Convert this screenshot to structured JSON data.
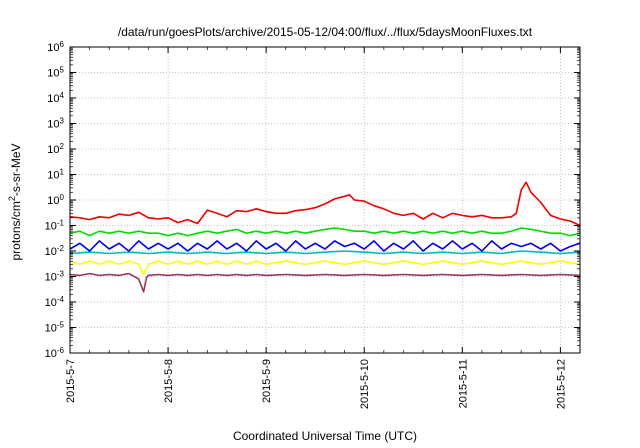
{
  "chart_data": {
    "type": "line",
    "title": "/data/run/goesPlots/archive/2015-05-12/04:00/flux/../flux/5daysMoonFluxes.txt",
    "xlabel": "Coordinated Universal Time (UTC)",
    "ylabel": {
      "before": "protons/cm",
      "sup": "2",
      "after": "-s-sr-MeV"
    },
    "yscale": "log",
    "ylim": [
      1e-06,
      1000000.0
    ],
    "xlim": [
      0,
      5.2
    ],
    "grid": true,
    "x_ticks": [
      {
        "x": 0,
        "label": "2015-5-7"
      },
      {
        "x": 1,
        "label": "2015-5-8"
      },
      {
        "x": 2,
        "label": "2015-5-9"
      },
      {
        "x": 3,
        "label": "2015-5-10"
      },
      {
        "x": 4,
        "label": "2015-5-11"
      },
      {
        "x": 5,
        "label": "2015-5-12"
      }
    ],
    "y_ticks": [
      {
        "exp": -6,
        "base": "10",
        "sup": "-6"
      },
      {
        "exp": -5,
        "base": "10",
        "sup": "-5"
      },
      {
        "exp": -4,
        "base": "10",
        "sup": "-4"
      },
      {
        "exp": -3,
        "base": "10",
        "sup": "-3"
      },
      {
        "exp": -2,
        "base": "10",
        "sup": "-2"
      },
      {
        "exp": -1,
        "base": "10",
        "sup": "-1"
      },
      {
        "exp": 0,
        "base": "10",
        "sup": "0"
      },
      {
        "exp": 1,
        "base": "10",
        "sup": "1"
      },
      {
        "exp": 2,
        "base": "10",
        "sup": "2"
      },
      {
        "exp": 3,
        "base": "10",
        "sup": "3"
      },
      {
        "exp": 4,
        "base": "10",
        "sup": "4"
      },
      {
        "exp": 5,
        "base": "10",
        "sup": "5"
      },
      {
        "exp": 6,
        "base": "10",
        "sup": "6"
      }
    ],
    "series": [
      {
        "color": "#ee0000",
        "points": [
          [
            0,
            0.22
          ],
          [
            0.1,
            0.2
          ],
          [
            0.2,
            0.17
          ],
          [
            0.3,
            0.22
          ],
          [
            0.4,
            0.2
          ],
          [
            0.5,
            0.28
          ],
          [
            0.6,
            0.25
          ],
          [
            0.7,
            0.33
          ],
          [
            0.8,
            0.2
          ],
          [
            0.9,
            0.18
          ],
          [
            1.0,
            0.2
          ],
          [
            1.1,
            0.13
          ],
          [
            1.2,
            0.17
          ],
          [
            1.3,
            0.12
          ],
          [
            1.4,
            0.4
          ],
          [
            1.5,
            0.3
          ],
          [
            1.6,
            0.22
          ],
          [
            1.7,
            0.38
          ],
          [
            1.8,
            0.35
          ],
          [
            1.9,
            0.45
          ],
          [
            2.0,
            0.35
          ],
          [
            2.1,
            0.3
          ],
          [
            2.2,
            0.3
          ],
          [
            2.3,
            0.38
          ],
          [
            2.4,
            0.42
          ],
          [
            2.5,
            0.5
          ],
          [
            2.6,
            0.7
          ],
          [
            2.7,
            1.1
          ],
          [
            2.8,
            1.4
          ],
          [
            2.85,
            1.6
          ],
          [
            2.9,
            1.0
          ],
          [
            3.0,
            0.9
          ],
          [
            3.1,
            0.6
          ],
          [
            3.2,
            0.45
          ],
          [
            3.3,
            0.3
          ],
          [
            3.4,
            0.25
          ],
          [
            3.5,
            0.3
          ],
          [
            3.6,
            0.18
          ],
          [
            3.7,
            0.3
          ],
          [
            3.8,
            0.2
          ],
          [
            3.9,
            0.3
          ],
          [
            4.0,
            0.25
          ],
          [
            4.1,
            0.22
          ],
          [
            4.2,
            0.25
          ],
          [
            4.3,
            0.2
          ],
          [
            4.4,
            0.2
          ],
          [
            4.5,
            0.22
          ],
          [
            4.55,
            0.3
          ],
          [
            4.6,
            2.5
          ],
          [
            4.65,
            5.0
          ],
          [
            4.7,
            2.0
          ],
          [
            4.8,
            0.8
          ],
          [
            4.9,
            0.25
          ],
          [
            5.0,
            0.18
          ],
          [
            5.1,
            0.15
          ],
          [
            5.2,
            0.1
          ]
        ]
      },
      {
        "color": "#00dd00",
        "points": [
          [
            0,
            0.05
          ],
          [
            0.1,
            0.06
          ],
          [
            0.2,
            0.04
          ],
          [
            0.3,
            0.06
          ],
          [
            0.4,
            0.05
          ],
          [
            0.5,
            0.06
          ],
          [
            0.6,
            0.05
          ],
          [
            0.7,
            0.06
          ],
          [
            0.8,
            0.05
          ],
          [
            0.9,
            0.05
          ],
          [
            1.0,
            0.04
          ],
          [
            1.1,
            0.05
          ],
          [
            1.2,
            0.04
          ],
          [
            1.3,
            0.05
          ],
          [
            1.4,
            0.06
          ],
          [
            1.5,
            0.05
          ],
          [
            1.6,
            0.06
          ],
          [
            1.7,
            0.07
          ],
          [
            1.8,
            0.05
          ],
          [
            1.9,
            0.06
          ],
          [
            2.0,
            0.05
          ],
          [
            2.1,
            0.06
          ],
          [
            2.2,
            0.05
          ],
          [
            2.3,
            0.06
          ],
          [
            2.4,
            0.05
          ],
          [
            2.5,
            0.06
          ],
          [
            2.6,
            0.07
          ],
          [
            2.7,
            0.08
          ],
          [
            2.8,
            0.07
          ],
          [
            2.9,
            0.06
          ],
          [
            3.0,
            0.06
          ],
          [
            3.1,
            0.05
          ],
          [
            3.2,
            0.06
          ],
          [
            3.3,
            0.05
          ],
          [
            3.4,
            0.06
          ],
          [
            3.5,
            0.05
          ],
          [
            3.6,
            0.06
          ],
          [
            3.7,
            0.05
          ],
          [
            3.8,
            0.06
          ],
          [
            3.9,
            0.05
          ],
          [
            4.0,
            0.06
          ],
          [
            4.1,
            0.05
          ],
          [
            4.2,
            0.06
          ],
          [
            4.3,
            0.05
          ],
          [
            4.4,
            0.05
          ],
          [
            4.5,
            0.06
          ],
          [
            4.6,
            0.08
          ],
          [
            4.7,
            0.07
          ],
          [
            4.8,
            0.06
          ],
          [
            4.9,
            0.05
          ],
          [
            5.0,
            0.05
          ],
          [
            5.1,
            0.04
          ],
          [
            5.2,
            0.05
          ]
        ]
      },
      {
        "color": "#0000ee",
        "points": [
          [
            0,
            0.012
          ],
          [
            0.1,
            0.02
          ],
          [
            0.2,
            0.01
          ],
          [
            0.3,
            0.025
          ],
          [
            0.4,
            0.012
          ],
          [
            0.5,
            0.02
          ],
          [
            0.6,
            0.01
          ],
          [
            0.7,
            0.025
          ],
          [
            0.8,
            0.012
          ],
          [
            0.9,
            0.02
          ],
          [
            1.0,
            0.012
          ],
          [
            1.1,
            0.02
          ],
          [
            1.2,
            0.01
          ],
          [
            1.3,
            0.02
          ],
          [
            1.4,
            0.012
          ],
          [
            1.5,
            0.025
          ],
          [
            1.6,
            0.012
          ],
          [
            1.7,
            0.02
          ],
          [
            1.8,
            0.01
          ],
          [
            1.9,
            0.025
          ],
          [
            2.0,
            0.012
          ],
          [
            2.1,
            0.02
          ],
          [
            2.2,
            0.01
          ],
          [
            2.3,
            0.025
          ],
          [
            2.4,
            0.012
          ],
          [
            2.5,
            0.02
          ],
          [
            2.6,
            0.012
          ],
          [
            2.7,
            0.025
          ],
          [
            2.8,
            0.015
          ],
          [
            2.9,
            0.02
          ],
          [
            3.0,
            0.012
          ],
          [
            3.1,
            0.025
          ],
          [
            3.2,
            0.01
          ],
          [
            3.3,
            0.02
          ],
          [
            3.4,
            0.012
          ],
          [
            3.5,
            0.025
          ],
          [
            3.6,
            0.01
          ],
          [
            3.7,
            0.02
          ],
          [
            3.8,
            0.012
          ],
          [
            3.9,
            0.025
          ],
          [
            4.0,
            0.012
          ],
          [
            4.1,
            0.02
          ],
          [
            4.2,
            0.01
          ],
          [
            4.3,
            0.025
          ],
          [
            4.4,
            0.012
          ],
          [
            4.5,
            0.02
          ],
          [
            4.6,
            0.015
          ],
          [
            4.7,
            0.02
          ],
          [
            4.8,
            0.012
          ],
          [
            4.9,
            0.02
          ],
          [
            5.0,
            0.01
          ],
          [
            5.1,
            0.015
          ],
          [
            5.2,
            0.02
          ]
        ]
      },
      {
        "color": "#00bbbb",
        "points": [
          [
            0,
            0.008
          ],
          [
            0.2,
            0.009
          ],
          [
            0.4,
            0.008
          ],
          [
            0.6,
            0.009
          ],
          [
            0.8,
            0.008
          ],
          [
            1.0,
            0.009
          ],
          [
            1.2,
            0.008
          ],
          [
            1.4,
            0.009
          ],
          [
            1.6,
            0.008
          ],
          [
            1.8,
            0.009
          ],
          [
            2.0,
            0.008
          ],
          [
            2.2,
            0.009
          ],
          [
            2.4,
            0.008
          ],
          [
            2.6,
            0.009
          ],
          [
            2.8,
            0.01
          ],
          [
            3.0,
            0.009
          ],
          [
            3.2,
            0.008
          ],
          [
            3.4,
            0.009
          ],
          [
            3.6,
            0.008
          ],
          [
            3.8,
            0.009
          ],
          [
            4.0,
            0.008
          ],
          [
            4.2,
            0.009
          ],
          [
            4.4,
            0.008
          ],
          [
            4.6,
            0.01
          ],
          [
            4.8,
            0.009
          ],
          [
            5.0,
            0.008
          ],
          [
            5.2,
            0.009
          ]
        ]
      },
      {
        "color": "#ffff00",
        "points": [
          [
            0,
            0.004
          ],
          [
            0.1,
            0.003
          ],
          [
            0.2,
            0.004
          ],
          [
            0.3,
            0.003
          ],
          [
            0.4,
            0.004
          ],
          [
            0.5,
            0.003
          ],
          [
            0.6,
            0.004
          ],
          [
            0.7,
            0.003
          ],
          [
            0.75,
            0.0012
          ],
          [
            0.8,
            0.003
          ],
          [
            0.9,
            0.004
          ],
          [
            1.0,
            0.003
          ],
          [
            1.1,
            0.004
          ],
          [
            1.2,
            0.003
          ],
          [
            1.3,
            0.004
          ],
          [
            1.4,
            0.003
          ],
          [
            1.5,
            0.004
          ],
          [
            1.6,
            0.003
          ],
          [
            1.7,
            0.004
          ],
          [
            1.8,
            0.003
          ],
          [
            1.9,
            0.004
          ],
          [
            2.0,
            0.003
          ],
          [
            2.2,
            0.004
          ],
          [
            2.4,
            0.003
          ],
          [
            2.6,
            0.004
          ],
          [
            2.8,
            0.003
          ],
          [
            3.0,
            0.004
          ],
          [
            3.2,
            0.003
          ],
          [
            3.4,
            0.004
          ],
          [
            3.6,
            0.003
          ],
          [
            3.8,
            0.004
          ],
          [
            4.0,
            0.003
          ],
          [
            4.2,
            0.004
          ],
          [
            4.4,
            0.003
          ],
          [
            4.6,
            0.004
          ],
          [
            4.8,
            0.003
          ],
          [
            5.0,
            0.004
          ],
          [
            5.2,
            0.003
          ]
        ]
      },
      {
        "color": "#993366",
        "points": [
          [
            0,
            0.0012
          ],
          [
            0.1,
            0.0011
          ],
          [
            0.2,
            0.0013
          ],
          [
            0.3,
            0.0011
          ],
          [
            0.4,
            0.0012
          ],
          [
            0.5,
            0.0011
          ],
          [
            0.6,
            0.0013
          ],
          [
            0.7,
            0.0008
          ],
          [
            0.75,
            0.00025
          ],
          [
            0.78,
            0.0009
          ],
          [
            0.8,
            0.0011
          ],
          [
            0.9,
            0.0012
          ],
          [
            1.0,
            0.0011
          ],
          [
            1.1,
            0.0012
          ],
          [
            1.2,
            0.0011
          ],
          [
            1.3,
            0.0012
          ],
          [
            1.4,
            0.0011
          ],
          [
            1.5,
            0.0012
          ],
          [
            1.6,
            0.0011
          ],
          [
            1.7,
            0.0012
          ],
          [
            1.8,
            0.0011
          ],
          [
            1.9,
            0.0012
          ],
          [
            2.0,
            0.0011
          ],
          [
            2.2,
            0.0012
          ],
          [
            2.4,
            0.0011
          ],
          [
            2.6,
            0.0012
          ],
          [
            2.8,
            0.0011
          ],
          [
            3.0,
            0.0012
          ],
          [
            3.2,
            0.0011
          ],
          [
            3.4,
            0.0012
          ],
          [
            3.6,
            0.0011
          ],
          [
            3.8,
            0.0012
          ],
          [
            4.0,
            0.0011
          ],
          [
            4.2,
            0.0012
          ],
          [
            4.4,
            0.0011
          ],
          [
            4.6,
            0.0012
          ],
          [
            4.8,
            0.0011
          ],
          [
            5.0,
            0.0012
          ],
          [
            5.2,
            0.0011
          ]
        ]
      }
    ]
  }
}
